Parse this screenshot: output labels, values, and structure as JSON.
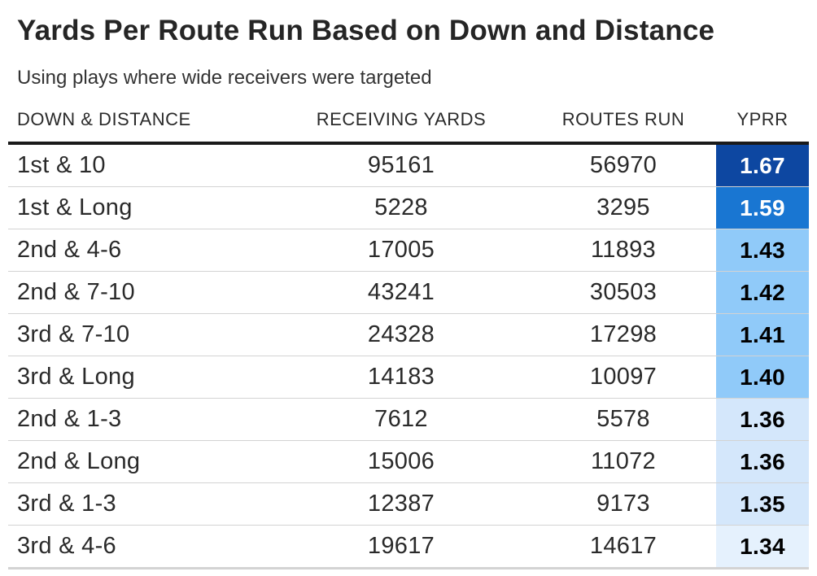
{
  "title": "Yards Per Route Run Based on Down and Distance",
  "subtitle": "Using plays where wide receivers were targeted",
  "chart_data": {
    "type": "table",
    "columns": [
      "DOWN & DISTANCE",
      "RECEIVING YARDS",
      "ROUTES RUN",
      "YPRR"
    ],
    "rows": [
      {
        "down": "1st & 10",
        "yards": 95161,
        "routes": 56970,
        "yprr": "1.67",
        "color": "#0d47a1",
        "text_color": "#ffffff"
      },
      {
        "down": "1st & Long",
        "yards": 5228,
        "routes": 3295,
        "yprr": "1.59",
        "color": "#1976d2",
        "text_color": "#ffffff"
      },
      {
        "down": "2nd & 4-6",
        "yards": 17005,
        "routes": 11893,
        "yprr": "1.43",
        "color": "#90caf9",
        "text_color": "#000000"
      },
      {
        "down": "2nd & 7-10",
        "yards": 43241,
        "routes": 30503,
        "yprr": "1.42",
        "color": "#90caf9",
        "text_color": "#000000"
      },
      {
        "down": "3rd & 7-10",
        "yards": 24328,
        "routes": 17298,
        "yprr": "1.41",
        "color": "#90caf9",
        "text_color": "#000000"
      },
      {
        "down": "3rd & Long",
        "yards": 14183,
        "routes": 10097,
        "yprr": "1.40",
        "color": "#90caf9",
        "text_color": "#000000"
      },
      {
        "down": "2nd & 1-3",
        "yards": 7612,
        "routes": 5578,
        "yprr": "1.36",
        "color": "#d4e7fb",
        "text_color": "#000000"
      },
      {
        "down": "2nd & Long",
        "yards": 15006,
        "routes": 11072,
        "yprr": "1.36",
        "color": "#d4e7fb",
        "text_color": "#000000"
      },
      {
        "down": "3rd & 1-3",
        "yards": 12387,
        "routes": 9173,
        "yprr": "1.35",
        "color": "#d4e7fb",
        "text_color": "#000000"
      },
      {
        "down": "3rd & 4-6",
        "yards": 19617,
        "routes": 14617,
        "yprr": "1.34",
        "color": "#e5f1fd",
        "text_color": "#000000"
      }
    ]
  }
}
